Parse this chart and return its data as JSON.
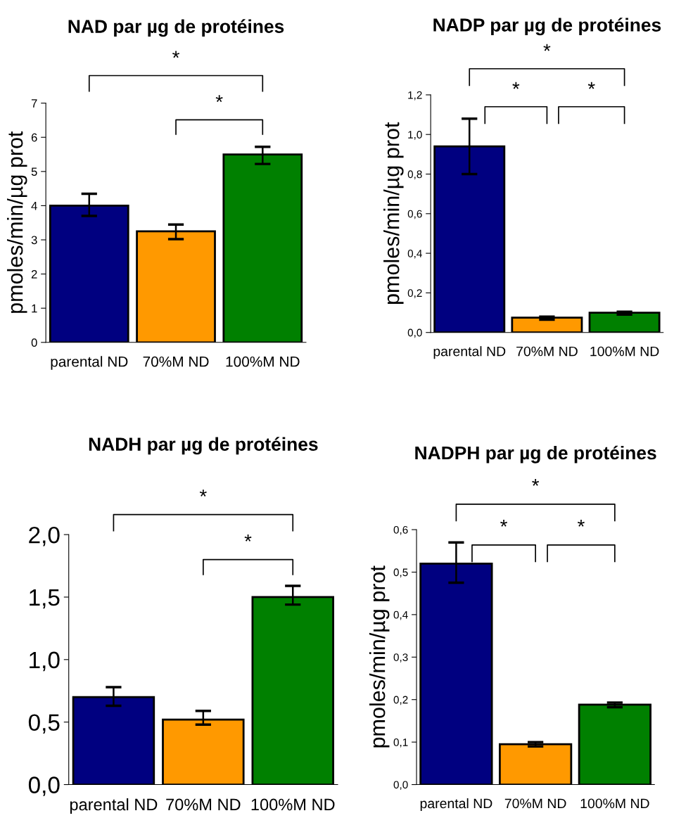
{
  "chart_data": [
    {
      "type": "bar",
      "title": "NAD par µg de protéines",
      "ylabel": "pmoles/min/µg prot",
      "categories": [
        "parental ND",
        "70%M ND",
        "100%M ND"
      ],
      "values": [
        4.0,
        3.25,
        5.5
      ],
      "colors": [
        "#000080",
        "#ff9900",
        "#008000"
      ],
      "errors": [
        [
          3.7,
          4.35
        ],
        [
          3.02,
          3.45
        ],
        [
          5.22,
          5.72
        ]
      ],
      "ylim": [
        0,
        7
      ],
      "yticks": [
        0,
        1,
        2,
        3,
        4,
        5,
        6,
        7
      ],
      "annotations": [
        "*",
        "*"
      ],
      "grid": false,
      "legend": false
    },
    {
      "type": "bar",
      "title": "NADP par µg de protéines",
      "ylabel": "pmoles/min/µg prot",
      "categories": [
        "parental ND",
        "70%M ND",
        "100%M ND"
      ],
      "values": [
        0.94,
        0.075,
        0.1
      ],
      "colors": [
        "#000080",
        "#ff9900",
        "#008000"
      ],
      "errors": [
        [
          0.8,
          1.08
        ],
        [
          0.065,
          0.08
        ],
        [
          0.09,
          0.105
        ]
      ],
      "ylim": [
        0,
        1.2
      ],
      "yticks": [
        {
          "value": 0,
          "label": "0,0"
        },
        {
          "value": 0.2,
          "label": "0,2"
        },
        {
          "value": 0.4,
          "label": "0,4"
        },
        {
          "value": 0.6,
          "label": "0,6"
        },
        {
          "value": 0.8,
          "label": "0,8"
        },
        {
          "value": 1.0,
          "label": "1,0"
        },
        {
          "value": 1.2,
          "label": "1,2"
        }
      ],
      "annotations": [
        "*",
        "*",
        "*"
      ],
      "grid": false,
      "legend": false
    },
    {
      "type": "bar",
      "title": "NADH par µg de protéines",
      "categories": [
        "parental ND",
        "70%M ND",
        "100%M ND"
      ],
      "values": [
        0.7,
        0.52,
        1.5
      ],
      "colors": [
        "#000080",
        "#ff9900",
        "#008000"
      ],
      "errors": [
        [
          0.63,
          0.78
        ],
        [
          0.48,
          0.59
        ],
        [
          1.44,
          1.59
        ]
      ],
      "ylim": [
        0,
        2.0
      ],
      "yticks": [
        {
          "value": 0,
          "label": "0,0"
        },
        {
          "value": 0.5,
          "label": "0,5"
        },
        {
          "value": 1.0,
          "label": "1,0"
        },
        {
          "value": 1.5,
          "label": "1,5"
        },
        {
          "value": 2.0,
          "label": "2,0"
        }
      ],
      "annotations": [
        "*",
        "*"
      ],
      "grid": false,
      "legend": false
    },
    {
      "type": "bar",
      "title": "NADPH par µg de protéines",
      "ylabel": "pmoles/min/µg prot",
      "categories": [
        "parental ND",
        "70%M ND",
        "100%M ND"
      ],
      "values": [
        0.52,
        0.095,
        0.188
      ],
      "colors": [
        "#000080",
        "#ff9900",
        "#008000"
      ],
      "errors": [
        [
          0.475,
          0.57
        ],
        [
          0.09,
          0.1
        ],
        [
          0.182,
          0.193
        ]
      ],
      "ylim": [
        0,
        0.6
      ],
      "yticks": [
        {
          "value": 0,
          "label": "0,0"
        },
        {
          "value": 0.1,
          "label": "0,1"
        },
        {
          "value": 0.2,
          "label": "0,2"
        },
        {
          "value": 0.3,
          "label": "0,3"
        },
        {
          "value": 0.4,
          "label": "0,4"
        },
        {
          "value": 0.5,
          "label": "0,5"
        },
        {
          "value": 0.6,
          "label": "0,6"
        }
      ],
      "annotations": [
        "*",
        "*",
        "*"
      ],
      "grid": false,
      "legend": false
    }
  ]
}
